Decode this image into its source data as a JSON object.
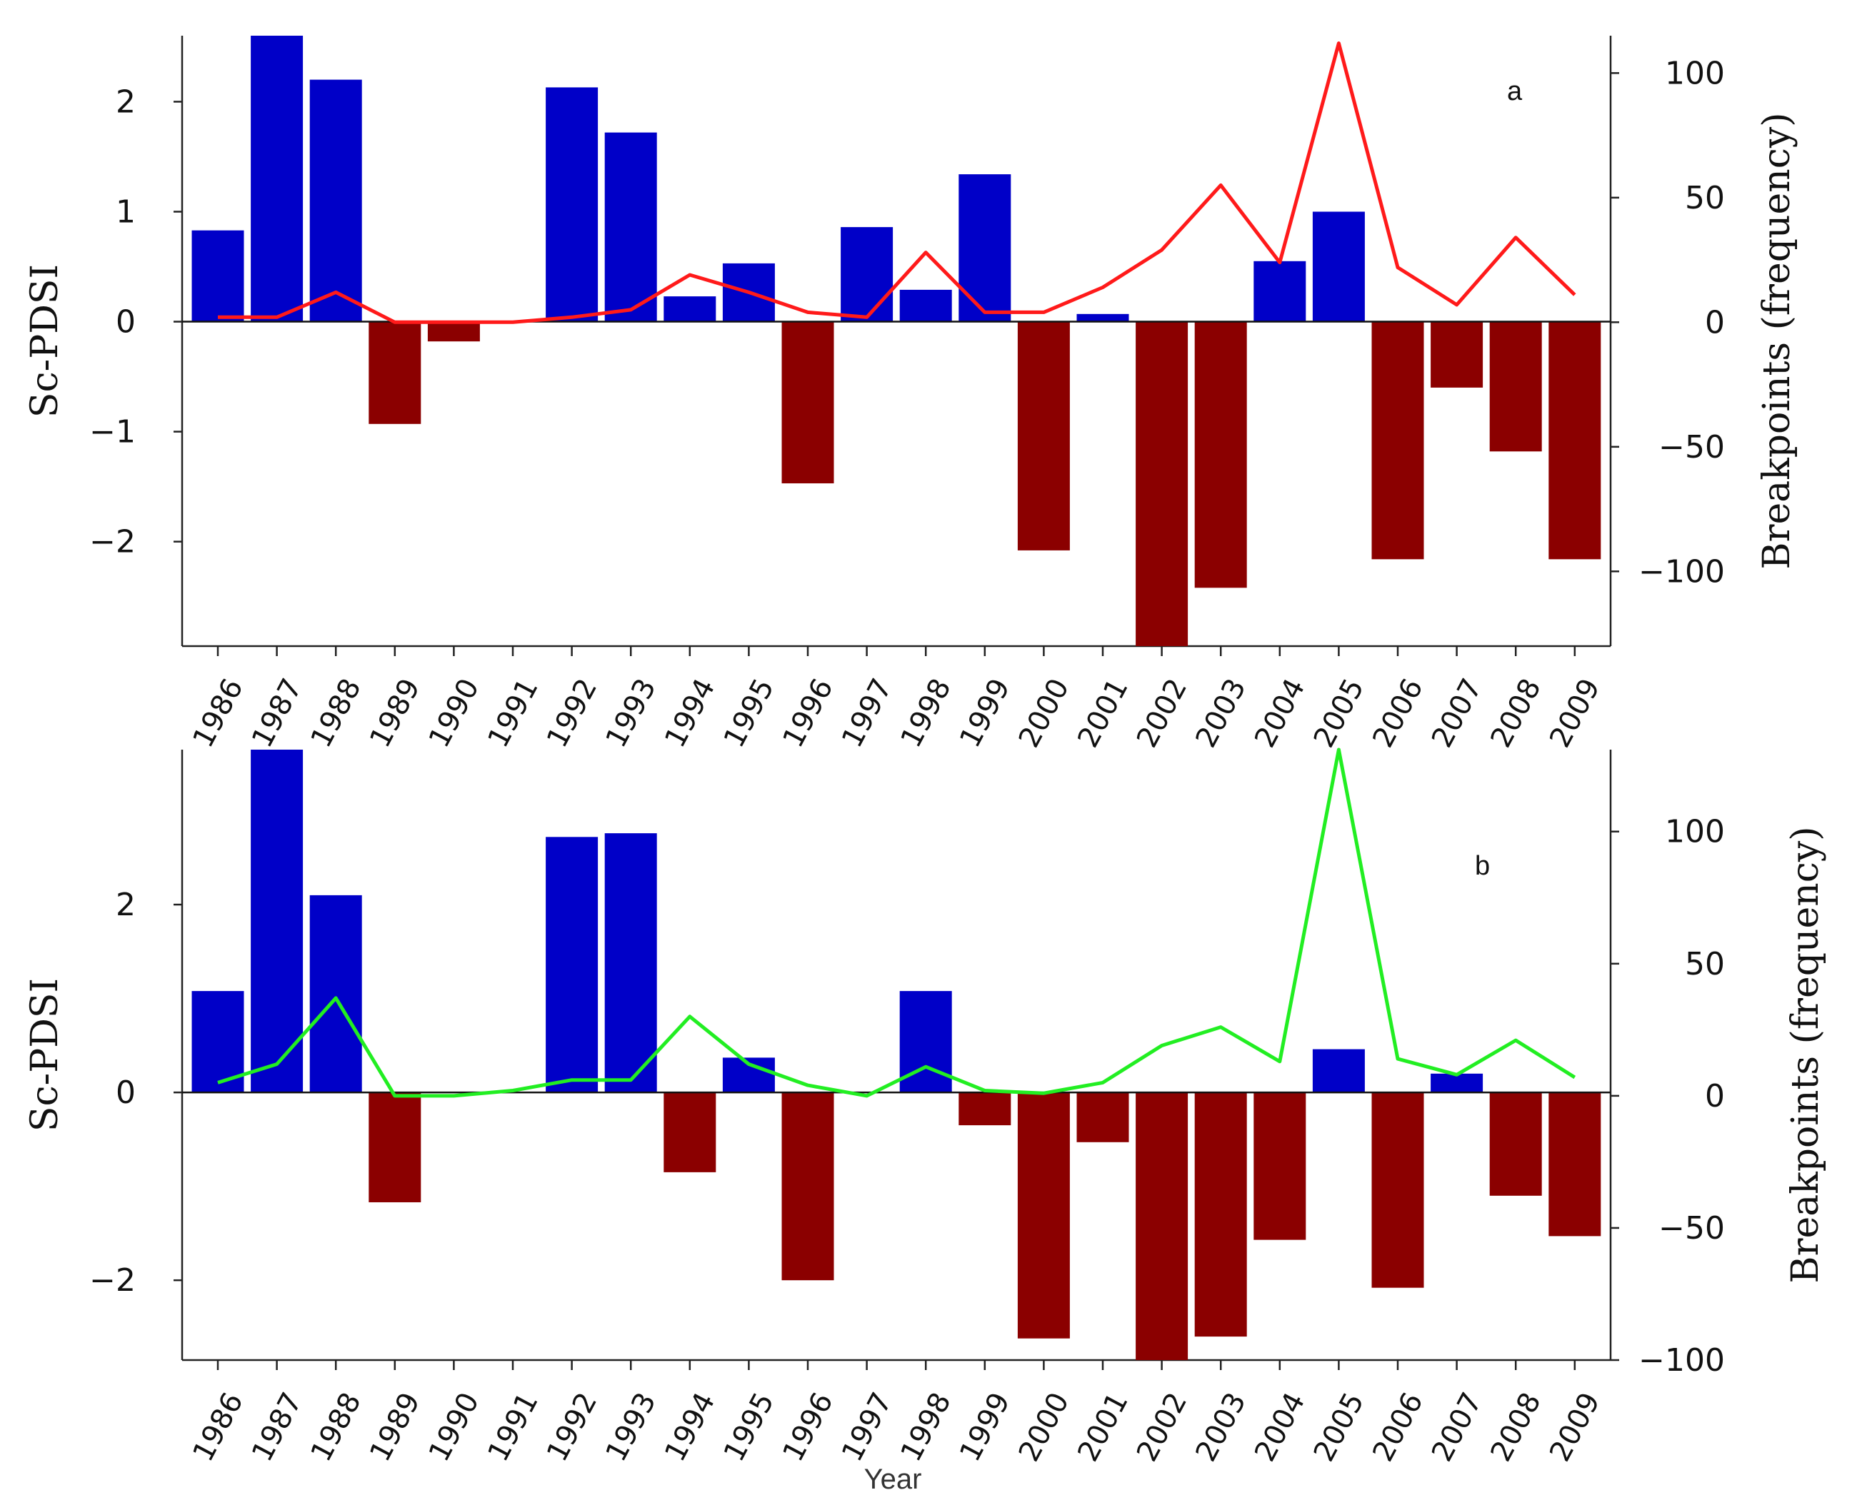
{
  "chart_data": [
    {
      "id": "a",
      "type": "bar",
      "panel_label": "a",
      "categories": [
        "1986",
        "1987",
        "1988",
        "1989",
        "1990",
        "1991",
        "1992",
        "1993",
        "1994",
        "1995",
        "1996",
        "1997",
        "1998",
        "1999",
        "2000",
        "2001",
        "2002",
        "2003",
        "2004",
        "2005",
        "2006",
        "2007",
        "2008",
        "2009"
      ],
      "series": [
        {
          "name": "Sc-PDSI",
          "axis": "left",
          "type": "bar",
          "values": [
            0.83,
            2.6,
            2.2,
            -0.93,
            -0.18,
            0.0,
            2.13,
            1.72,
            0.23,
            0.53,
            -1.47,
            0.86,
            0.29,
            1.34,
            -2.08,
            0.07,
            -2.95,
            -2.42,
            0.55,
            1.0,
            -2.16,
            -0.6,
            -1.18,
            -2.16
          ]
        },
        {
          "name": "Breakpoints (frequency)",
          "axis": "right",
          "type": "line",
          "color": "#ff1a1a",
          "values": [
            2,
            2,
            12,
            0,
            0,
            0,
            2,
            5,
            19,
            12,
            4,
            2,
            28,
            4,
            4,
            14,
            29,
            55,
            24,
            112,
            22,
            7,
            34,
            11
          ]
        }
      ],
      "ylabel_left": "Sc-PDSI",
      "ylabel_right": "Breakpoints (frequency)",
      "ylim_left": [
        -2.95,
        2.6
      ],
      "ylim_right": [
        -130,
        115
      ],
      "yticks_left": [
        -2,
        -1,
        0,
        1,
        2
      ],
      "yticks_right": [
        -100,
        -50,
        0,
        50,
        100
      ],
      "ytick_labels_left": [
        "−2",
        "−1",
        "0",
        "1",
        "2"
      ],
      "ytick_labels_right": [
        "−100",
        "−50",
        "0",
        "50",
        "100"
      ],
      "positive_color": "#0000c8",
      "negative_color": "#8b0000"
    },
    {
      "id": "b",
      "type": "bar",
      "panel_label": "b",
      "categories": [
        "1986",
        "1987",
        "1988",
        "1989",
        "1990",
        "1991",
        "1992",
        "1993",
        "1994",
        "1995",
        "1996",
        "1997",
        "1998",
        "1999",
        "2000",
        "2001",
        "2002",
        "2003",
        "2004",
        "2005",
        "2006",
        "2007",
        "2008",
        "2009"
      ],
      "series": [
        {
          "name": "Sc-PDSI",
          "axis": "left",
          "type": "bar",
          "values": [
            1.08,
            3.65,
            2.1,
            -1.17,
            0.0,
            0.0,
            2.72,
            2.76,
            -0.85,
            0.37,
            -2.0,
            0.0,
            1.08,
            -0.35,
            -2.62,
            -0.53,
            -2.85,
            -2.6,
            -1.57,
            0.46,
            -2.08,
            0.2,
            -1.1,
            -1.53
          ]
        },
        {
          "name": "Breakpoints (frequency)",
          "axis": "right",
          "type": "line",
          "color": "#22ee22",
          "values": [
            5,
            12,
            37,
            0,
            0,
            2,
            6,
            6,
            30,
            12,
            4,
            0,
            11,
            2,
            1,
            5,
            19,
            26,
            13,
            131,
            14,
            8,
            21,
            7
          ]
        }
      ],
      "ylabel_left": "Sc-PDSI",
      "ylabel_right": "Breakpoints (frequency)",
      "ylim_left": [
        -2.85,
        3.65
      ],
      "ylim_right": [
        -100,
        131
      ],
      "yticks_left": [
        -2,
        0,
        2
      ],
      "yticks_right": [
        -100,
        -50,
        0,
        50,
        100
      ],
      "ytick_labels_left": [
        "−2",
        "0",
        "2"
      ],
      "ytick_labels_right": [
        "−100",
        "−50",
        "0",
        "50",
        "100"
      ],
      "positive_color": "#0000c8",
      "negative_color": "#8b0000"
    }
  ],
  "xlabel": "Year"
}
